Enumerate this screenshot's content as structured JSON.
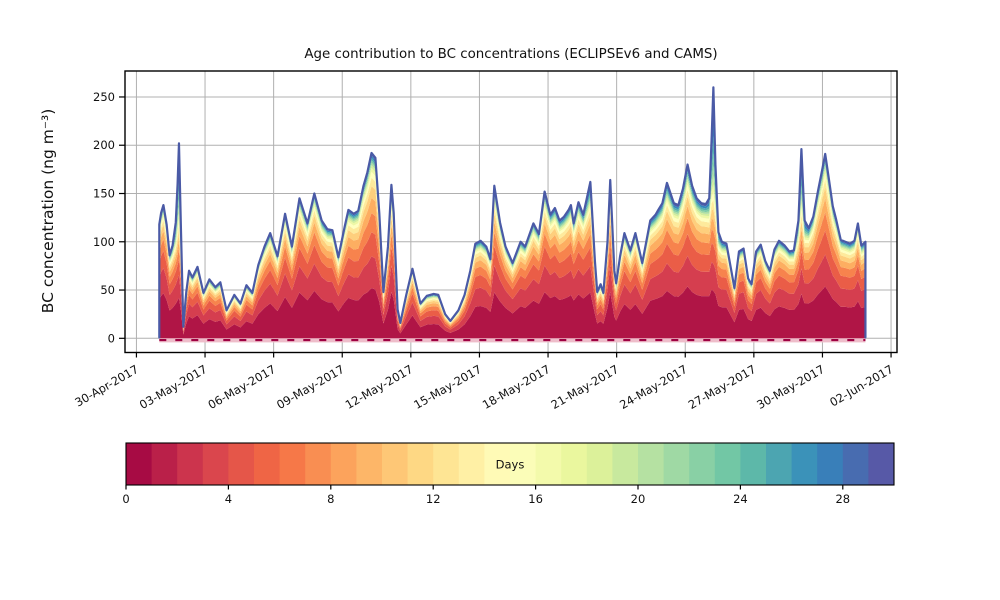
{
  "figure": {
    "background": "#ffffff"
  },
  "chart_data": {
    "type": "area",
    "subtype": "stacked_area_by_age",
    "title": "Age contribution to BC concentrations (ECLIPSEv6 and CAMS)",
    "ylabel": "BC concentration (ng m⁻³)",
    "xlabel": "",
    "grid": true,
    "grid_color": "#b0b0b0",
    "spine_color": "#000000",
    "total_line_color": "#4a5aa6",
    "zero_line": {
      "style": "dashed",
      "color": "#9e0142",
      "band_color": "#eebdca",
      "value": 0
    },
    "ylim": [
      -14.7,
      276.9
    ],
    "yticks": [
      0,
      50,
      100,
      150,
      200,
      250
    ],
    "xlim_days": [
      -0.5,
      33.26
    ],
    "x_unit": "days since 30-Apr-2017",
    "xticks": [
      {
        "day": 0,
        "label": "30-Apr-2017"
      },
      {
        "day": 3,
        "label": "03-May-2017"
      },
      {
        "day": 6,
        "label": "06-May-2017"
      },
      {
        "day": 9,
        "label": "09-May-2017"
      },
      {
        "day": 12,
        "label": "12-May-2017"
      },
      {
        "day": 15,
        "label": "15-May-2017"
      },
      {
        "day": 18,
        "label": "18-May-2017"
      },
      {
        "day": 21,
        "label": "21-May-2017"
      },
      {
        "day": 24,
        "label": "24-May-2017"
      },
      {
        "day": 27,
        "label": "27-May-2017"
      },
      {
        "day": 30,
        "label": "30-May-2017"
      },
      {
        "day": 33,
        "label": "02-Jun-2017"
      }
    ],
    "colorbar": {
      "label": "Days",
      "vmin": 0,
      "vmax": 30,
      "n_segments": 30,
      "ticks": [
        0,
        4,
        8,
        12,
        16,
        20,
        24,
        28
      ],
      "orientation": "horizontal"
    },
    "colormap": {
      "name": "Spectral",
      "anchors": [
        [
          0.0,
          "#9e0142"
        ],
        [
          0.1,
          "#d53e4f"
        ],
        [
          0.2,
          "#f46d43"
        ],
        [
          0.3,
          "#fdae61"
        ],
        [
          0.4,
          "#fee08b"
        ],
        [
          0.5,
          "#ffffbf"
        ],
        [
          0.6,
          "#e6f598"
        ],
        [
          0.7,
          "#abdda4"
        ],
        [
          0.8,
          "#66c2a5"
        ],
        [
          0.9,
          "#3288bd"
        ],
        [
          1.0,
          "#5e4fa2"
        ]
      ]
    },
    "age_bands_days": [
      [
        0,
        2
      ],
      [
        2,
        4
      ],
      [
        4,
        6
      ],
      [
        6,
        8
      ],
      [
        8,
        10
      ],
      [
        10,
        12
      ],
      [
        12,
        14
      ],
      [
        14,
        16
      ],
      [
        16,
        18
      ],
      [
        18,
        20
      ],
      [
        20,
        22
      ],
      [
        22,
        24
      ],
      [
        24,
        26
      ],
      [
        26,
        28
      ],
      [
        28,
        30
      ]
    ],
    "profiles": {
      "young": [
        0.4,
        0.21,
        0.13,
        0.075,
        0.05,
        0.034,
        0.024,
        0.017,
        0.012,
        0.009,
        0.008,
        0.007,
        0.006,
        0.005,
        0.004
      ],
      "mid": [
        0.2,
        0.155,
        0.14,
        0.125,
        0.105,
        0.085,
        0.06,
        0.04,
        0.025,
        0.018,
        0.013,
        0.01,
        0.009,
        0.008,
        0.007
      ],
      "old": [
        0.16,
        0.09,
        0.06,
        0.045,
        0.04,
        0.038,
        0.036,
        0.035,
        0.035,
        0.04,
        0.05,
        0.065,
        0.09,
        0.115,
        0.14
      ]
    },
    "series_format": [
      "day_since_30Apr",
      "total_ng_m3",
      "mid_age_weight",
      "old_age_weight"
    ],
    "series": [
      [
        1.0,
        118,
        0.25,
        0.06
      ],
      [
        1.08,
        130,
        0.25,
        0.06
      ],
      [
        1.18,
        138,
        0.25,
        0.06
      ],
      [
        1.32,
        118,
        0.25,
        0.06
      ],
      [
        1.45,
        86,
        0.25,
        0.08
      ],
      [
        1.58,
        96,
        0.22,
        0.12
      ],
      [
        1.72,
        120,
        0.15,
        0.3
      ],
      [
        1.8,
        160,
        0.1,
        0.55
      ],
      [
        1.86,
        202,
        0.08,
        0.72
      ],
      [
        1.95,
        110,
        0.1,
        0.5
      ],
      [
        2.05,
        12,
        0.2,
        0.2
      ],
      [
        2.18,
        48,
        0.3,
        0.08
      ],
      [
        2.3,
        70,
        0.3,
        0.07
      ],
      [
        2.45,
        63,
        0.3,
        0.07
      ],
      [
        2.67,
        74,
        0.3,
        0.07
      ],
      [
        2.93,
        47,
        0.32,
        0.07
      ],
      [
        3.19,
        61,
        0.3,
        0.07
      ],
      [
        3.45,
        53,
        0.32,
        0.07
      ],
      [
        3.67,
        58,
        0.32,
        0.07
      ],
      [
        3.94,
        29,
        0.34,
        0.08
      ],
      [
        4.28,
        45,
        0.32,
        0.07
      ],
      [
        4.55,
        36,
        0.34,
        0.08
      ],
      [
        4.81,
        55,
        0.32,
        0.07
      ],
      [
        5.07,
        47,
        0.32,
        0.07
      ],
      [
        5.33,
        76,
        0.3,
        0.06
      ],
      [
        5.6,
        95,
        0.28,
        0.06
      ],
      [
        5.85,
        109,
        0.28,
        0.06
      ],
      [
        6.17,
        85,
        0.28,
        0.06
      ],
      [
        6.5,
        129,
        0.28,
        0.06
      ],
      [
        6.8,
        95,
        0.28,
        0.06
      ],
      [
        7.13,
        145,
        0.3,
        0.06
      ],
      [
        7.48,
        119,
        0.28,
        0.06
      ],
      [
        7.78,
        150,
        0.3,
        0.06
      ],
      [
        8.1,
        122,
        0.28,
        0.06
      ],
      [
        8.35,
        113,
        0.28,
        0.06
      ],
      [
        8.57,
        112,
        0.28,
        0.06
      ],
      [
        8.83,
        84,
        0.28,
        0.06
      ],
      [
        9.1,
        115,
        0.32,
        0.06
      ],
      [
        9.27,
        133,
        0.36,
        0.06
      ],
      [
        9.5,
        129,
        0.4,
        0.06
      ],
      [
        9.7,
        132,
        0.45,
        0.06
      ],
      [
        9.93,
        158,
        0.5,
        0.06
      ],
      [
        10.1,
        172,
        0.55,
        0.06
      ],
      [
        10.28,
        192,
        0.58,
        0.06
      ],
      [
        10.45,
        187,
        0.58,
        0.06
      ],
      [
        10.62,
        130,
        0.48,
        0.06
      ],
      [
        10.8,
        48,
        0.32,
        0.07
      ],
      [
        11.0,
        95,
        0.3,
        0.12
      ],
      [
        11.15,
        159,
        0.28,
        0.18
      ],
      [
        11.25,
        130,
        0.28,
        0.14
      ],
      [
        11.42,
        30,
        0.3,
        0.08
      ],
      [
        11.54,
        16,
        0.3,
        0.08
      ],
      [
        11.8,
        45,
        0.32,
        0.07
      ],
      [
        12.07,
        72,
        0.3,
        0.06
      ],
      [
        12.42,
        36,
        0.34,
        0.07
      ],
      [
        12.7,
        44,
        0.32,
        0.07
      ],
      [
        13.0,
        46,
        0.32,
        0.07
      ],
      [
        13.2,
        45,
        0.32,
        0.07
      ],
      [
        13.5,
        25,
        0.34,
        0.08
      ],
      [
        13.73,
        18,
        0.34,
        0.08
      ],
      [
        14.08,
        29,
        0.34,
        0.08
      ],
      [
        14.35,
        45,
        0.32,
        0.07
      ],
      [
        14.6,
        70,
        0.3,
        0.06
      ],
      [
        14.82,
        98,
        0.28,
        0.06
      ],
      [
        15.05,
        101,
        0.28,
        0.06
      ],
      [
        15.3,
        95,
        0.28,
        0.06
      ],
      [
        15.48,
        82,
        0.28,
        0.06
      ],
      [
        15.65,
        158,
        0.38,
        0.1
      ],
      [
        15.9,
        120,
        0.32,
        0.08
      ],
      [
        16.14,
        95,
        0.28,
        0.06
      ],
      [
        16.45,
        78,
        0.28,
        0.06
      ],
      [
        16.8,
        100,
        0.28,
        0.06
      ],
      [
        17.0,
        95,
        0.28,
        0.06
      ],
      [
        17.36,
        119,
        0.3,
        0.06
      ],
      [
        17.6,
        108,
        0.28,
        0.06
      ],
      [
        17.85,
        152,
        0.34,
        0.08
      ],
      [
        18.1,
        128,
        0.3,
        0.07
      ],
      [
        18.3,
        135,
        0.3,
        0.07
      ],
      [
        18.5,
        122,
        0.3,
        0.07
      ],
      [
        18.7,
        126,
        0.3,
        0.07
      ],
      [
        18.9,
        133,
        0.3,
        0.07
      ],
      [
        19.0,
        138,
        0.3,
        0.07
      ],
      [
        19.12,
        119,
        0.28,
        0.07
      ],
      [
        19.33,
        141,
        0.3,
        0.08
      ],
      [
        19.54,
        128,
        0.3,
        0.08
      ],
      [
        19.85,
        162,
        0.3,
        0.2
      ],
      [
        20.05,
        80,
        0.28,
        0.12
      ],
      [
        20.15,
        48,
        0.32,
        0.08
      ],
      [
        20.3,
        56,
        0.32,
        0.08
      ],
      [
        20.42,
        47,
        0.32,
        0.08
      ],
      [
        20.6,
        100,
        0.3,
        0.1
      ],
      [
        20.72,
        164,
        0.3,
        0.2
      ],
      [
        20.9,
        70,
        0.3,
        0.1
      ],
      [
        20.98,
        57,
        0.32,
        0.08
      ],
      [
        21.15,
        85,
        0.3,
        0.07
      ],
      [
        21.34,
        109,
        0.3,
        0.07
      ],
      [
        21.6,
        91,
        0.3,
        0.07
      ],
      [
        21.82,
        109,
        0.3,
        0.07
      ],
      [
        22.12,
        78,
        0.3,
        0.07
      ],
      [
        22.47,
        122,
        0.32,
        0.08
      ],
      [
        22.7,
        128,
        0.32,
        0.08
      ],
      [
        22.82,
        133,
        0.33,
        0.09
      ],
      [
        23.0,
        140,
        0.34,
        0.09
      ],
      [
        23.2,
        161,
        0.35,
        0.11
      ],
      [
        23.5,
        140,
        0.34,
        0.09
      ],
      [
        23.7,
        138,
        0.34,
        0.09
      ],
      [
        23.9,
        155,
        0.36,
        0.1
      ],
      [
        24.1,
        180,
        0.38,
        0.11
      ],
      [
        24.3,
        158,
        0.37,
        0.1
      ],
      [
        24.5,
        145,
        0.35,
        0.09
      ],
      [
        24.7,
        140,
        0.34,
        0.09
      ],
      [
        24.9,
        139,
        0.33,
        0.09
      ],
      [
        25.05,
        145,
        0.28,
        0.18
      ],
      [
        25.15,
        205,
        0.16,
        0.5
      ],
      [
        25.23,
        260,
        0.1,
        0.78
      ],
      [
        25.32,
        180,
        0.18,
        0.45
      ],
      [
        25.45,
        110,
        0.26,
        0.18
      ],
      [
        25.6,
        100,
        0.28,
        0.1
      ],
      [
        25.8,
        98,
        0.28,
        0.08
      ],
      [
        26.0,
        72,
        0.3,
        0.07
      ],
      [
        26.15,
        52,
        0.32,
        0.07
      ],
      [
        26.35,
        90,
        0.3,
        0.06
      ],
      [
        26.55,
        93,
        0.3,
        0.06
      ],
      [
        26.75,
        62,
        0.32,
        0.07
      ],
      [
        26.9,
        56,
        0.32,
        0.07
      ],
      [
        27.1,
        90,
        0.3,
        0.06
      ],
      [
        27.3,
        97,
        0.3,
        0.06
      ],
      [
        27.5,
        80,
        0.3,
        0.06
      ],
      [
        27.7,
        70,
        0.3,
        0.06
      ],
      [
        27.9,
        92,
        0.3,
        0.06
      ],
      [
        28.1,
        101,
        0.3,
        0.06
      ],
      [
        28.35,
        96,
        0.3,
        0.06
      ],
      [
        28.55,
        90,
        0.3,
        0.06
      ],
      [
        28.75,
        91,
        0.3,
        0.08
      ],
      [
        28.95,
        122,
        0.28,
        0.22
      ],
      [
        29.08,
        196,
        0.15,
        0.55
      ],
      [
        29.22,
        122,
        0.26,
        0.22
      ],
      [
        29.4,
        114,
        0.3,
        0.1
      ],
      [
        29.6,
        126,
        0.36,
        0.08
      ],
      [
        29.8,
        152,
        0.42,
        0.08
      ],
      [
        30.0,
        176,
        0.48,
        0.08
      ],
      [
        30.12,
        191,
        0.5,
        0.08
      ],
      [
        30.3,
        162,
        0.46,
        0.08
      ],
      [
        30.45,
        137,
        0.42,
        0.08
      ],
      [
        30.6,
        123,
        0.38,
        0.08
      ],
      [
        30.8,
        102,
        0.32,
        0.07
      ],
      [
        31.0,
        100,
        0.3,
        0.07
      ],
      [
        31.2,
        98,
        0.3,
        0.07
      ],
      [
        31.4,
        101,
        0.3,
        0.07
      ],
      [
        31.55,
        119,
        0.3,
        0.08
      ],
      [
        31.7,
        96,
        0.3,
        0.07
      ],
      [
        31.88,
        100,
        0.3,
        0.07
      ]
    ]
  }
}
